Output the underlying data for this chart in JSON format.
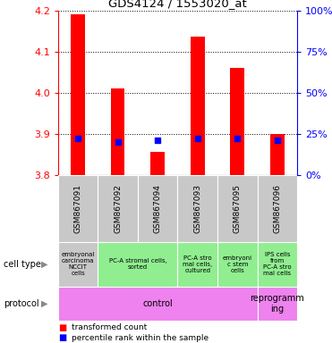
{
  "title": "GDS4124 / 1553020_at",
  "samples": [
    "GSM867091",
    "GSM867092",
    "GSM867094",
    "GSM867093",
    "GSM867095",
    "GSM867096"
  ],
  "transformed_counts": [
    4.19,
    4.01,
    3.855,
    4.135,
    4.06,
    3.9
  ],
  "percentile_ranks": [
    22,
    20,
    21,
    22,
    22,
    21
  ],
  "ylim_left": [
    3.8,
    4.2
  ],
  "ylim_right": [
    0,
    100
  ],
  "yticks_left": [
    3.8,
    3.9,
    4.0,
    4.1,
    4.2
  ],
  "yticks_right": [
    0,
    25,
    50,
    75,
    100
  ],
  "bar_bottom": 3.8,
  "bar_color": "#ff0000",
  "dot_color": "#0000ff",
  "bar_width": 0.35,
  "dot_size": 4,
  "gray_color": "#c8c8c8",
  "green_color": "#90ee90",
  "magenta_color": "#ee82ee",
  "ct_groups": [
    [
      0,
      1,
      "#c8c8c8",
      "embryonal\ncarcinoma\nNCCIT\ncells"
    ],
    [
      1,
      3,
      "#90ee90",
      "PC-A stromal cells,\nsorted"
    ],
    [
      3,
      4,
      "#90ee90",
      "PC-A stro\nmal cells,\ncultured"
    ],
    [
      4,
      5,
      "#90ee90",
      "embryoni\nc stem\ncells"
    ],
    [
      5,
      6,
      "#90ee90",
      "IPS cells\nfrom\nPC-A stro\nmal cells"
    ]
  ],
  "prot_groups": [
    [
      0,
      5,
      "#ee82ee",
      "control"
    ],
    [
      5,
      6,
      "#ee82ee",
      "reprogramm\ning"
    ]
  ],
  "label_celltype": "cell type",
  "label_protocol": "protocol",
  "legend_red": "transformed count",
  "legend_blue": "percentile rank within the sample",
  "background_color": "#ffffff"
}
